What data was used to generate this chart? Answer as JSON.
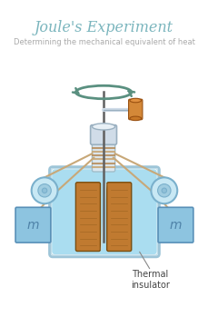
{
  "title": "Joule's Experiment",
  "subtitle": "Determining the mechanical equivalent of heat",
  "title_color": "#7ab5bd",
  "subtitle_color": "#aaaaaa",
  "bg_color": "#ffffff",
  "title_fontsize": 11.5,
  "subtitle_fontsize": 6.0,
  "mass_label": "m",
  "thermal_label": "Thermal\ninsulator",
  "mass_color": "#8dc4e0",
  "mass_label_color": "#4e82a8",
  "water_color": "#aaddf0",
  "container_fill": "#c8e8f5",
  "container_outline": "#9ec5d8",
  "paddle_color": "#c07a30",
  "paddle_dark": "#7a4e10",
  "paddle_mid": "#a86820",
  "shaft_color": "#606060",
  "axle_color": "#d4dce4",
  "axle_outline": "#a8b8c4",
  "rope_color": "#c8a878",
  "pulley_fill": "#c8e8f4",
  "pulley_outline": "#7ab0cc",
  "pulley_inner": "#a0cce0",
  "therm_color": "#c87828",
  "therm_top": "#e09040",
  "therm_body": "#d48838",
  "arrow_color": "#5a9080",
  "neck_fill": "#dce8f0",
  "neck_outline": "#a0bcc8",
  "cap_fill": "#d0dce8",
  "cap_outline": "#9ab0c0",
  "line_color": "#888888"
}
